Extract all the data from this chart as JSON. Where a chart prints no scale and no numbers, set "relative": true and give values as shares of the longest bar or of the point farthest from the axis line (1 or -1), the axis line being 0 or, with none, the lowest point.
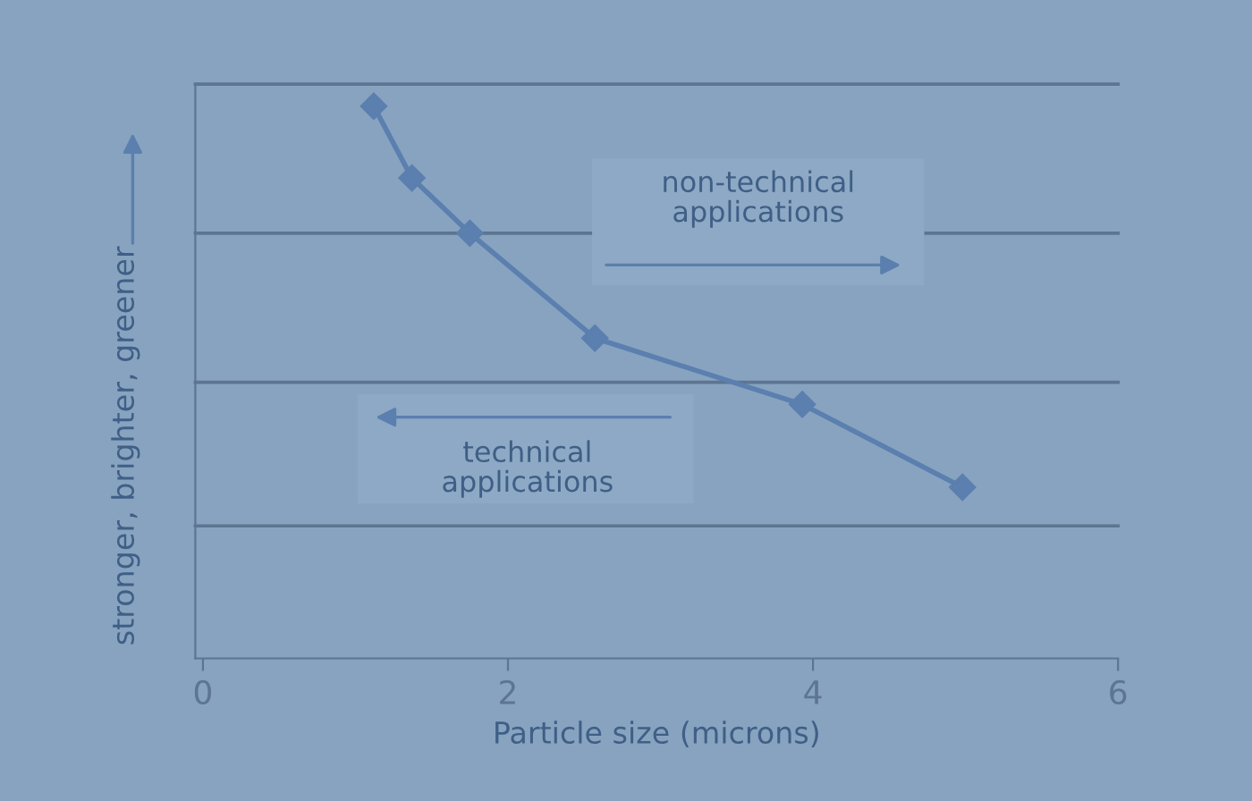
{
  "chart_data": {
    "type": "line",
    "xlabel": "Particle size (microns)",
    "ylabel": "stronger, brighter, greener",
    "x": [
      1.12,
      1.37,
      1.75,
      2.57,
      3.93,
      4.98
    ],
    "series": [
      {
        "color": "#5b7fae",
        "values": [
          1,
          0.87,
          0.77,
          0.58,
          0.46,
          0.31
        ]
      }
    ],
    "relative": true,
    "xlim": [
      -0.05,
      6
    ],
    "xticks": [
      0,
      2,
      4,
      6
    ],
    "marker": "diamond",
    "ref_lines": [
      {
        "axis": "y",
        "value": 0.24,
        "color": "#5d7590"
      },
      {
        "axis": "y",
        "value": 0.5,
        "color": "#5d7590"
      },
      {
        "axis": "y",
        "value": 0.77,
        "color": "#5d7590"
      },
      {
        "axis": "y",
        "value": 1.04,
        "color": "#5d7590"
      }
    ],
    "line_style": "solid",
    "tick_labels": "x",
    "annotations": [
      "non-technical\napplications",
      "technical\napplications"
    ]
  }
}
